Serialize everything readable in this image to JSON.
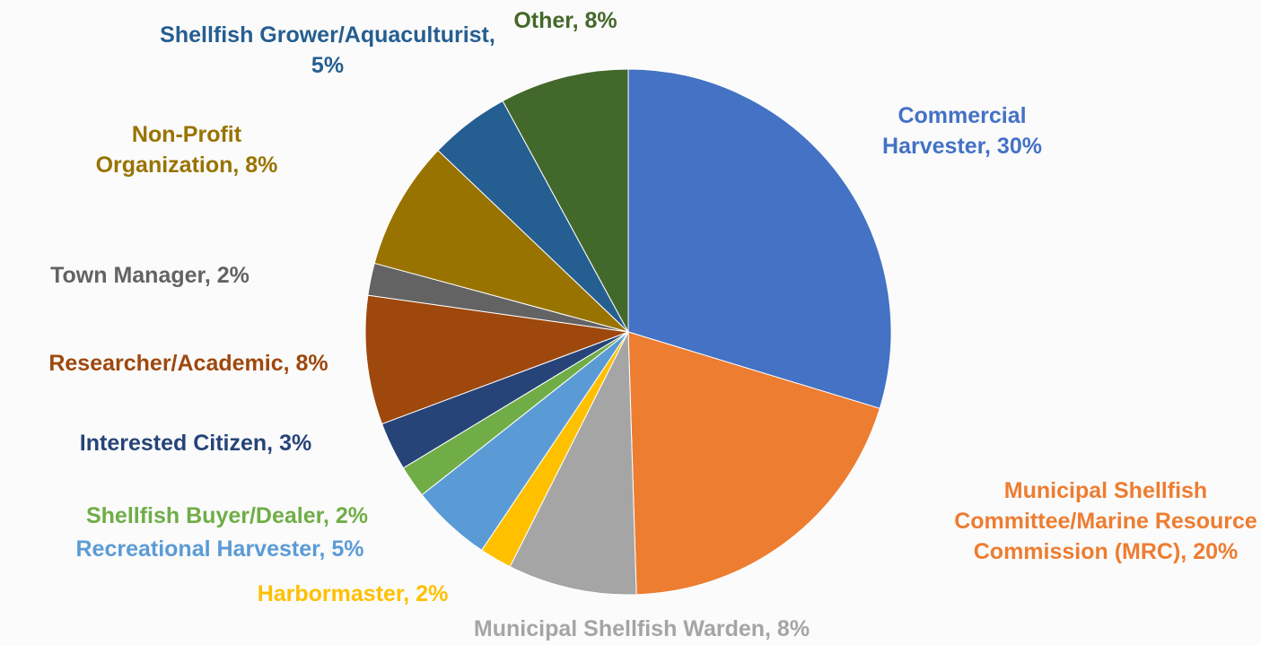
{
  "chart_data": {
    "type": "pie",
    "labels": [
      "Commercial Harvester, 30%",
      "Municipal Shellfish Committee/Marine Resource Commission (MRC), 20%",
      "Municipal Shellfish Warden, 8%",
      "Harbormaster, 2%",
      "Recreational Harvester, 5%",
      "Shellfish Buyer/Dealer, 2%",
      "Interested Citizen, 3%",
      "Researcher/Academic, 8%",
      "Town Manager, 2%",
      "Non-Profit Organization, 8%",
      "Shellfish Grower/Aquaculturist, 5%",
      "Other, 8%"
    ],
    "values": [
      30,
      20,
      8,
      2,
      5,
      2,
      3,
      8,
      2,
      8,
      5,
      8
    ],
    "colors": [
      "#4472c4",
      "#ed7d31",
      "#a5a5a5",
      "#ffc000",
      "#5b9bd5",
      "#70ad47",
      "#264478",
      "#9e480e",
      "#636363",
      "#997300",
      "#255e91",
      "#43682b"
    ]
  }
}
